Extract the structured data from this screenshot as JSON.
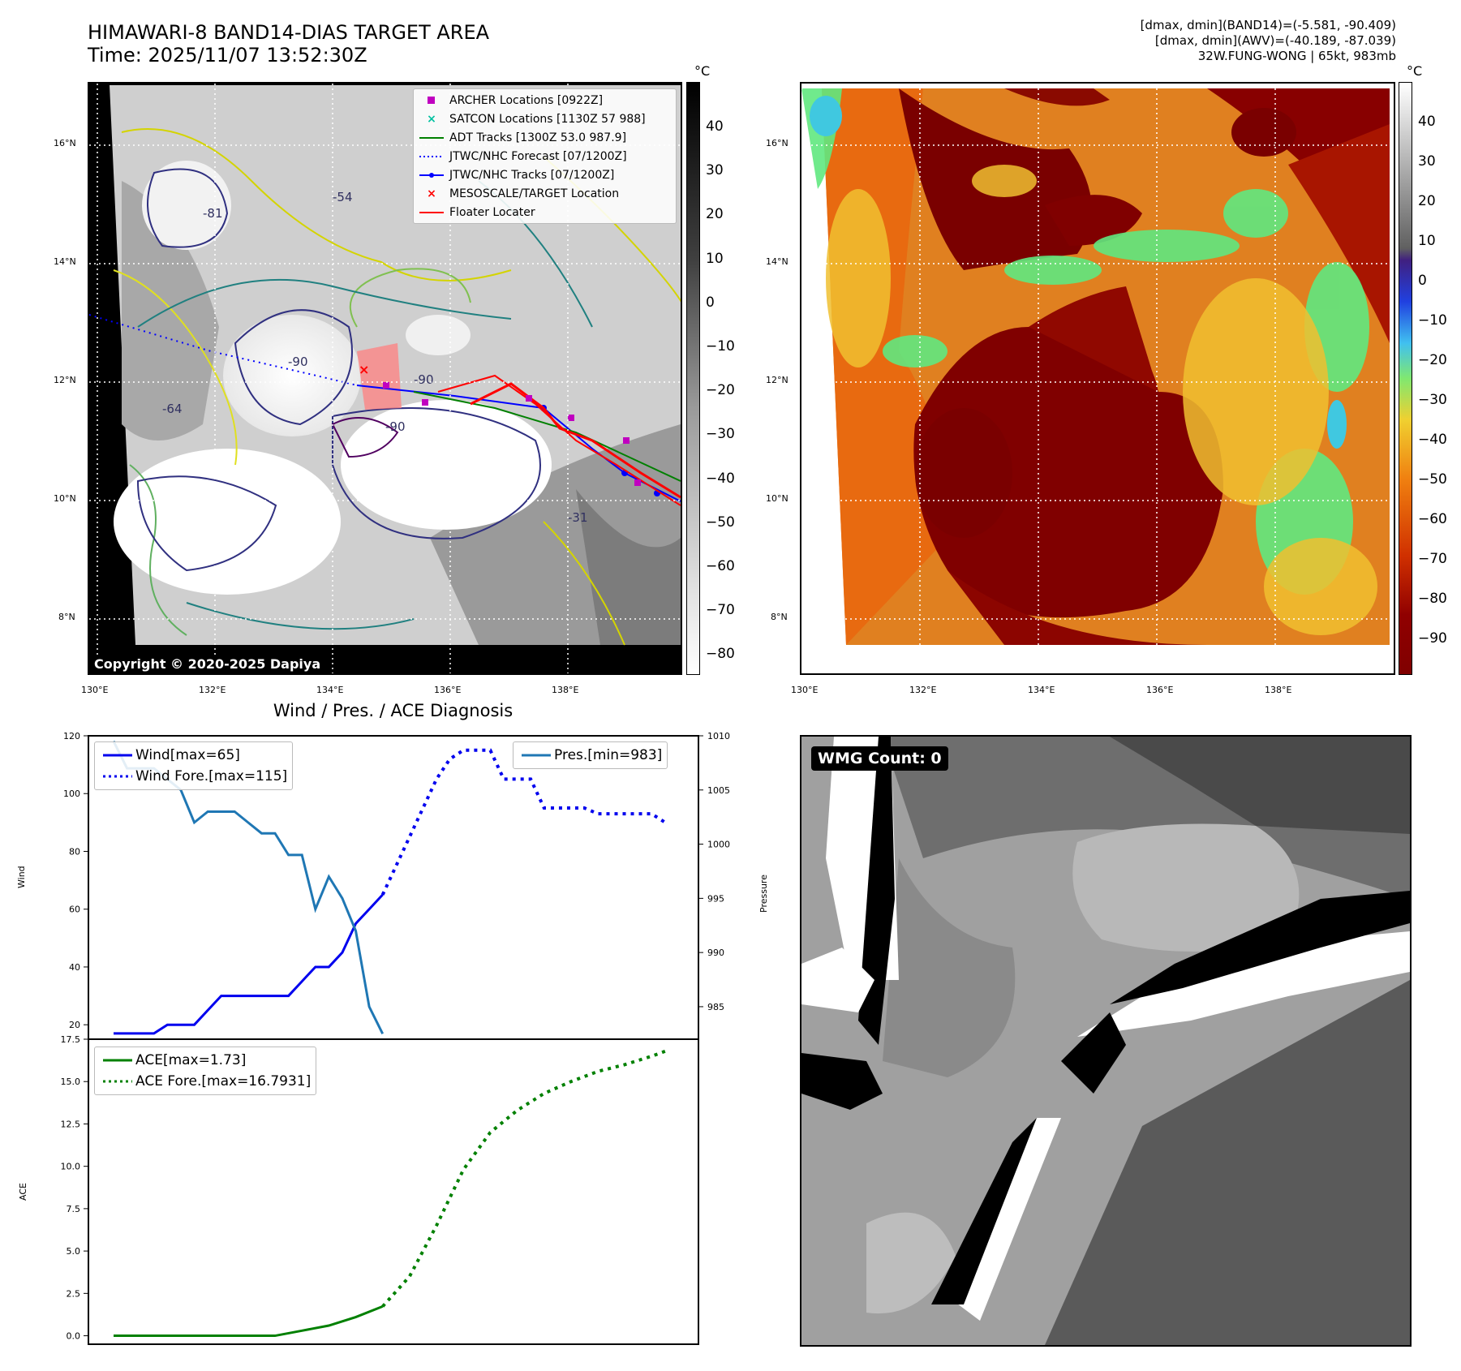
{
  "header": {
    "title_line1": "HIMAWARI-8 BAND14-DIAS TARGET AREA",
    "title_line2": "Time: 2025/11/07 13:52:30Z",
    "stats_line1": "[dmax, dmin](BAND14)=(-5.581, -90.409)",
    "stats_line2": "[dmax, dmin](AWV)=(-40.189, -87.039)",
    "stats_line3": "32W.FUNG-WONG | 65kt, 983mb"
  },
  "map_axes": {
    "lat_labels": [
      "16°N",
      "14°N",
      "12°N",
      "10°N",
      "8°N"
    ],
    "lon_labels": [
      "130°E",
      "132°E",
      "134°E",
      "136°E",
      "138°E"
    ]
  },
  "ir_panel": {
    "colorbar_unit": "°C",
    "colorbar_ticks": [
      "40",
      "30",
      "20",
      "10",
      "0",
      "−10",
      "−20",
      "−30",
      "−40",
      "−50",
      "−60",
      "−70",
      "−80"
    ],
    "copyright": "Copyright © 2020-2025 Dapiya",
    "contour_labels": [
      "-90",
      "-90",
      "-81",
      "-64",
      "-54",
      "-31",
      "-90"
    ],
    "legend": [
      {
        "label": "ARCHER Locations [0922Z]",
        "symbol": "square",
        "color": "#c000c0"
      },
      {
        "label": "SATCON Locations [1130Z 57 988]",
        "symbol": "x",
        "color": "#00c0a0"
      },
      {
        "label": "ADT Tracks [1300Z 53.0 987.9]",
        "symbol": "line",
        "color": "#008000"
      },
      {
        "label": "JTWC/NHC Forecast [07/1200Z]",
        "symbol": "dotted",
        "color": "#0000ff"
      },
      {
        "label": "JTWC/NHC Tracks [07/1200Z]",
        "symbol": "line-dot",
        "color": "#0000ff"
      },
      {
        "label": "MESOSCALE/TARGET Location",
        "symbol": "x",
        "color": "#ff0000"
      },
      {
        "label": "Floater Locater",
        "symbol": "line",
        "color": "#ff0000"
      }
    ]
  },
  "wv_panel": {
    "colorbar_unit": "°C",
    "colorbar_ticks": [
      "40",
      "30",
      "20",
      "10",
      "0",
      "−10",
      "−20",
      "−30",
      "−40",
      "−50",
      "−60",
      "−70",
      "−80",
      "−90"
    ]
  },
  "diag": {
    "title": "Wind / Pres. / ACE Diagnosis",
    "wind_ylabel": "Wind",
    "pres_ylabel": "Pressure",
    "ace_ylabel": "ACE",
    "wind_ticks": [
      "120",
      "100",
      "80",
      "60",
      "40",
      "20"
    ],
    "pres_ticks": [
      "1010",
      "1005",
      "1000",
      "995",
      "990",
      "985"
    ],
    "ace_ticks": [
      "17.5",
      "15.0",
      "12.5",
      "10.0",
      "7.5",
      "5.0",
      "2.5",
      "0.0"
    ],
    "legend_wind": "Wind[max=65]",
    "legend_wind_fore": "Wind Fore.[max=115]",
    "legend_pres": "Pres.[min=983]",
    "legend_ace": "ACE[max=1.73]",
    "legend_ace_fore": "ACE Fore.[max=16.7931]"
  },
  "wmg_panel": {
    "label": "WMG Count: 0"
  },
  "colors": {
    "wind": "#0000ee",
    "pressure": "#1f77b4",
    "ace": "#008000",
    "track_red": "#ff0000",
    "forecast_blue": "#0000ff"
  },
  "chart_data": [
    {
      "type": "line",
      "title": "Wind / Pres. / ACE Diagnosis",
      "ylabel": "Wind",
      "ylim": [
        15,
        120
      ],
      "series": [
        {
          "name": "Wind[max=65]",
          "x": [
            0,
            1,
            2,
            3,
            4,
            5,
            6,
            7,
            8,
            9,
            10,
            11,
            12,
            13,
            14,
            15,
            16,
            17,
            18,
            19,
            20
          ],
          "values": [
            17,
            17,
            17,
            17,
            20,
            20,
            20,
            25,
            30,
            30,
            30,
            30,
            30,
            30,
            35,
            40,
            40,
            45,
            55,
            60,
            65
          ]
        },
        {
          "name": "Wind Fore.[max=115]",
          "x": [
            20,
            21,
            22,
            23,
            24,
            25,
            26,
            27,
            28,
            29,
            30,
            31,
            32,
            33,
            34,
            35,
            36,
            37,
            38,
            39,
            40,
            41
          ],
          "values": [
            65,
            75,
            85,
            95,
            105,
            112,
            115,
            115,
            115,
            105,
            105,
            105,
            95,
            95,
            95,
            95,
            93,
            93,
            93,
            93,
            93,
            90
          ]
        }
      ]
    },
    {
      "type": "line",
      "ylabel": "Pressure",
      "ylim": [
        982,
        1010
      ],
      "series": [
        {
          "name": "Pres.[min=983]",
          "x": [
            0,
            1,
            2,
            3,
            4,
            5,
            6,
            7,
            8,
            9,
            10,
            11,
            12,
            13,
            14,
            15,
            16,
            17,
            18,
            19,
            20
          ],
          "values": [
            1009.5,
            1007,
            1007,
            1007,
            1006,
            1005,
            1002,
            1003,
            1003,
            1003,
            1002,
            1001,
            1001,
            999,
            999,
            994,
            997,
            995,
            992,
            985,
            982.5
          ]
        }
      ]
    },
    {
      "type": "line",
      "ylabel": "ACE",
      "ylim": [
        -0.5,
        17.5
      ],
      "series": [
        {
          "name": "ACE[max=1.73]",
          "x": [
            0,
            2,
            4,
            6,
            8,
            10,
            12,
            14,
            16,
            18,
            20
          ],
          "values": [
            0,
            0,
            0,
            0,
            0,
            0,
            0,
            0.3,
            0.6,
            1.1,
            1.73
          ]
        },
        {
          "name": "ACE Fore.[max=16.7931]",
          "x": [
            20,
            22,
            24,
            26,
            28,
            30,
            32,
            34,
            36,
            38,
            40,
            41
          ],
          "values": [
            1.73,
            3.5,
            6.5,
            9.8,
            12.0,
            13.3,
            14.3,
            15.0,
            15.6,
            16.0,
            16.5,
            16.79
          ]
        }
      ]
    }
  ]
}
